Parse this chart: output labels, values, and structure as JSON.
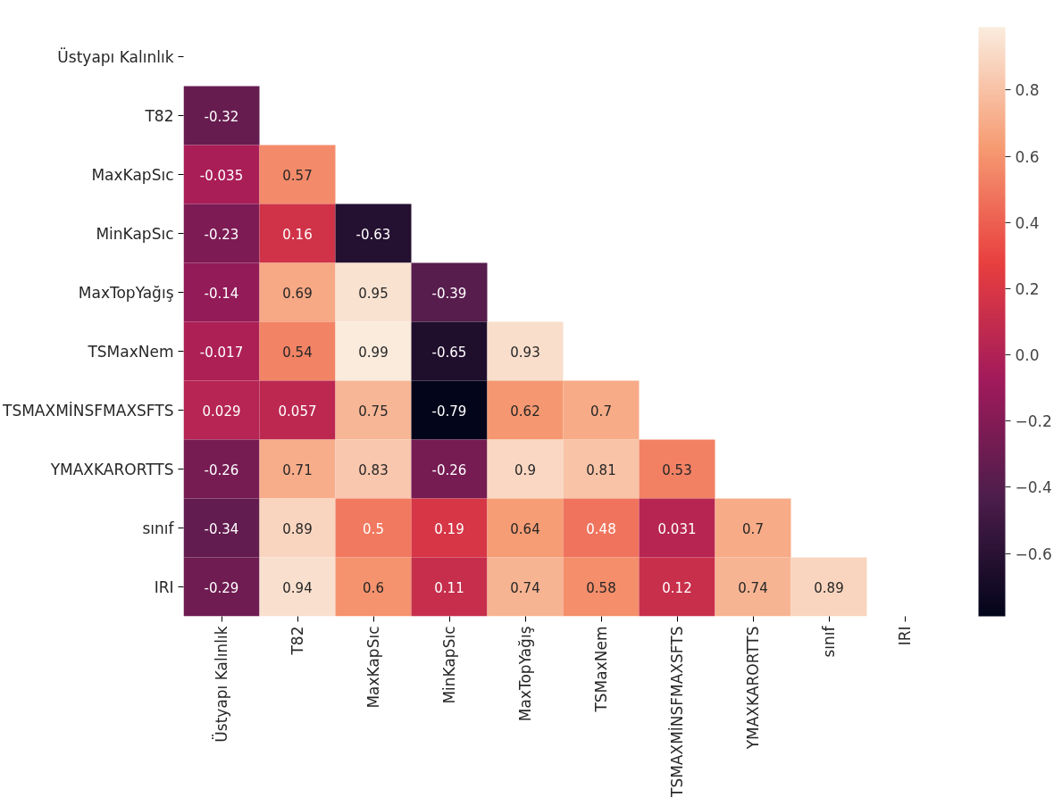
{
  "chart_data": {
    "type": "heatmap",
    "categories": [
      "Üstyapı Kalınlık",
      "T82",
      "MaxKapSıc",
      "MinKapSıc",
      "MaxTopYağış",
      "TSMaxNem",
      "TSMAXMİNSFMAXSFTS",
      "YMAXKARORTTS",
      "sınıf",
      "IRI"
    ],
    "y_categories": [
      "Üstyapı Kalınlık",
      "T82",
      "MaxKapSıc",
      "MinKapSıc",
      "MaxTopYağış",
      "TSMaxNem",
      "TSMAXMİNSFMAXSFTS",
      "YMAXKARORTTS",
      "sınıf",
      "IRI"
    ],
    "cells": [
      [
        null,
        null,
        null,
        null,
        null,
        null,
        null,
        null,
        null,
        null
      ],
      [
        -0.32,
        null,
        null,
        null,
        null,
        null,
        null,
        null,
        null,
        null
      ],
      [
        -0.035,
        0.57,
        null,
        null,
        null,
        null,
        null,
        null,
        null,
        null
      ],
      [
        -0.23,
        0.16,
        -0.63,
        null,
        null,
        null,
        null,
        null,
        null,
        null
      ],
      [
        -0.14,
        0.69,
        0.95,
        -0.39,
        null,
        null,
        null,
        null,
        null,
        null
      ],
      [
        -0.017,
        0.54,
        0.99,
        -0.65,
        0.93,
        null,
        null,
        null,
        null,
        null
      ],
      [
        0.029,
        0.057,
        0.75,
        -0.79,
        0.62,
        0.7,
        null,
        null,
        null,
        null
      ],
      [
        -0.26,
        0.71,
        0.83,
        -0.26,
        0.9,
        0.81,
        0.53,
        null,
        null,
        null
      ],
      [
        -0.34,
        0.89,
        0.5,
        0.19,
        0.64,
        0.48,
        0.031,
        0.7,
        null,
        null
      ],
      [
        -0.29,
        0.94,
        0.6,
        0.11,
        0.74,
        0.58,
        0.12,
        0.74,
        0.89,
        null
      ]
    ],
    "clim": [
      -0.79,
      0.99
    ],
    "cticks": [
      {
        "value": -0.6,
        "label": "−0.6"
      },
      {
        "value": -0.4,
        "label": "−0.4"
      },
      {
        "value": -0.2,
        "label": "−0.2"
      },
      {
        "value": 0.0,
        "label": "0.0"
      },
      {
        "value": 0.2,
        "label": "0.2"
      },
      {
        "value": 0.4,
        "label": "0.4"
      },
      {
        "value": 0.6,
        "label": "0.6"
      },
      {
        "value": 0.8,
        "label": "0.8"
      }
    ],
    "data_labels": true
  }
}
